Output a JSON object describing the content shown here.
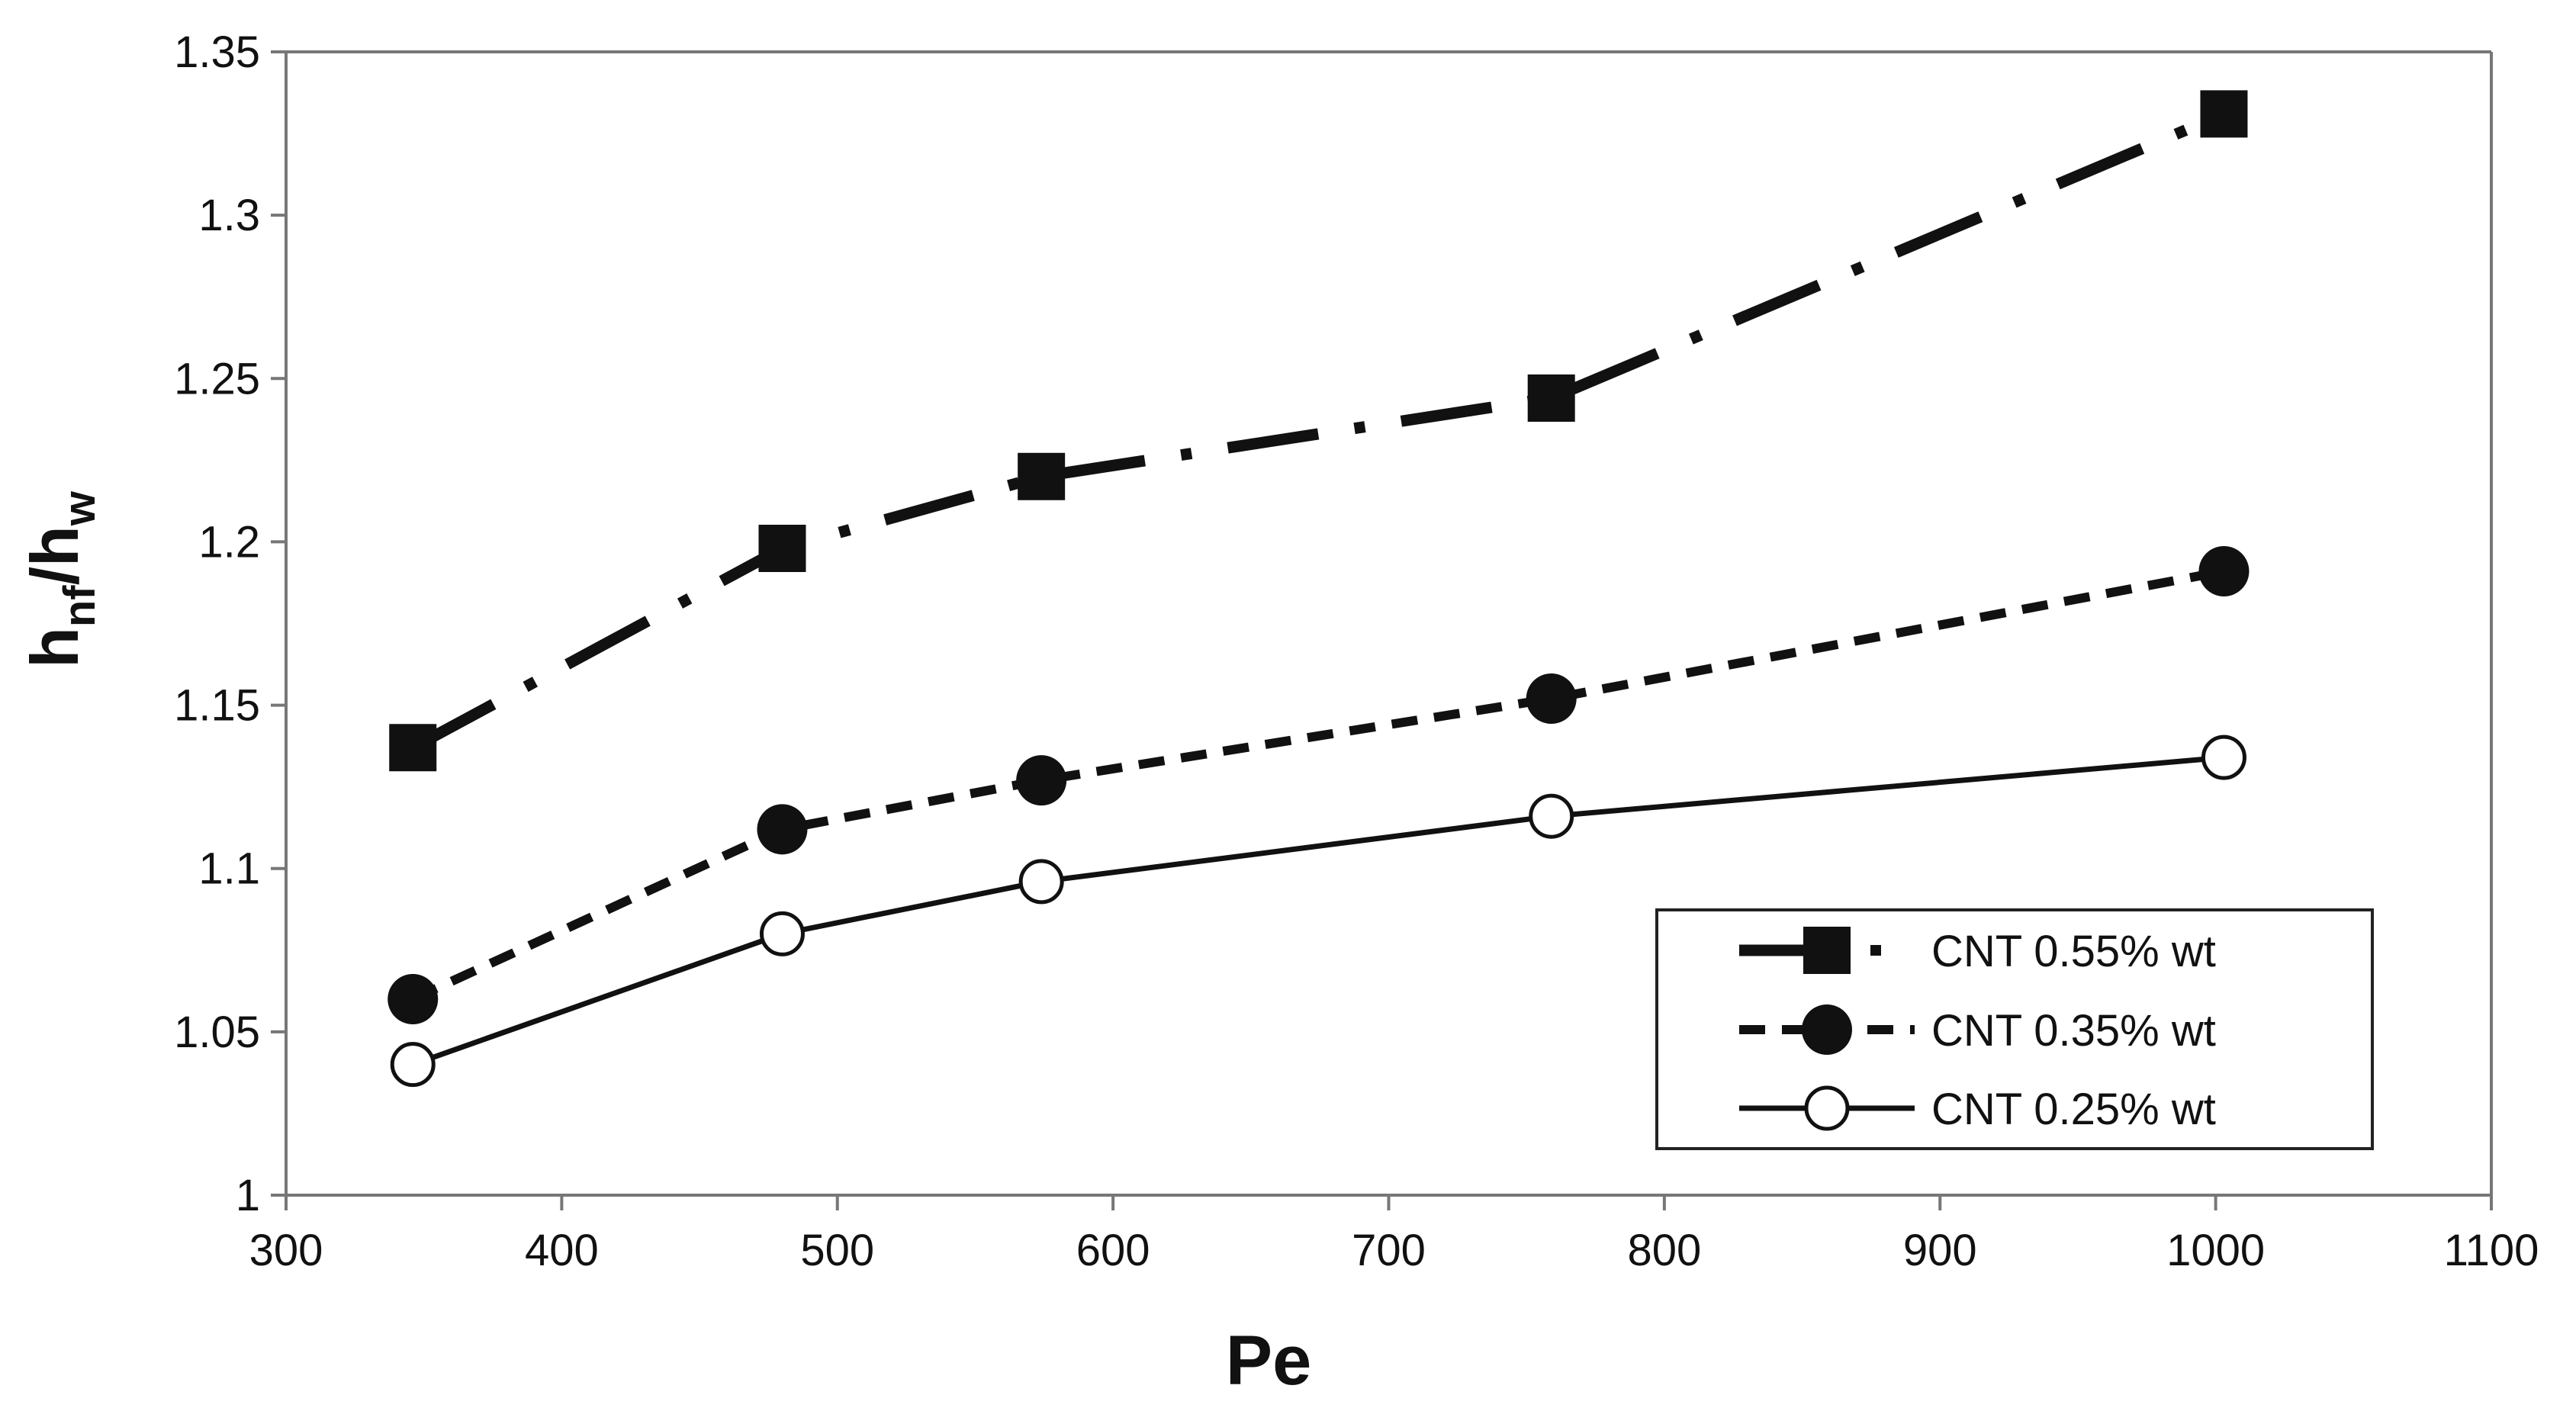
{
  "chart_data": {
    "type": "line",
    "title": "",
    "xlabel": "Pe",
    "ylabel": {
      "main": "h",
      "sub1": "nf",
      "sep": "/h",
      "sub2": "w"
    },
    "xlim": [
      300,
      1100
    ],
    "ylim": [
      1,
      1.35
    ],
    "x_ticks": [
      300,
      400,
      500,
      600,
      700,
      800,
      900,
      1000,
      1100
    ],
    "y_ticks": [
      1,
      1.05,
      1.1,
      1.15,
      1.2,
      1.25,
      1.3,
      1.35
    ],
    "x_tick_labels": [
      "300",
      "400",
      "500",
      "600",
      "700",
      "800",
      "900",
      "1000",
      "1100"
    ],
    "y_tick_labels": [
      "1",
      "1.05",
      "1.1",
      "1.15",
      "1.2",
      "1.25",
      "1.3",
      "1.35"
    ],
    "grid": false,
    "legend_position": "bottom-right",
    "series": [
      {
        "name": "CNT 0.55% wt",
        "marker": "filled-square",
        "line_style": "dash-dot",
        "x": [
          346,
          480,
          574,
          759,
          1003
        ],
        "y": [
          1.137,
          1.198,
          1.22,
          1.244,
          1.331
        ]
      },
      {
        "name": "CNT 0.35% wt",
        "marker": "filled-circle",
        "line_style": "dashed",
        "x": [
          346,
          480,
          574,
          759,
          1003
        ],
        "y": [
          1.06,
          1.112,
          1.127,
          1.152,
          1.191
        ]
      },
      {
        "name": "CNT 0.25% wt",
        "marker": "open-circle",
        "line_style": "solid",
        "x": [
          346,
          480,
          574,
          759,
          1003
        ],
        "y": [
          1.04,
          1.08,
          1.096,
          1.116,
          1.134
        ]
      }
    ]
  }
}
